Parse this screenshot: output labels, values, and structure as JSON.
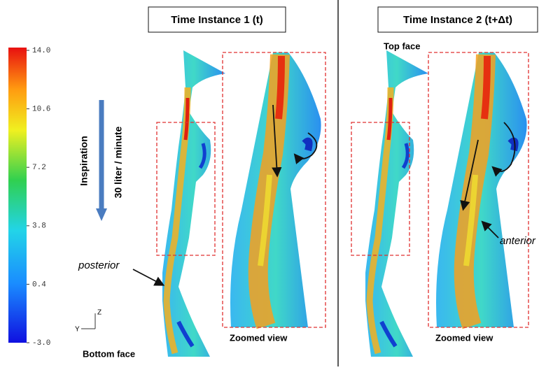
{
  "panels": [
    {
      "title": "Time Instance 1 (t)",
      "zoom_label": "Zoomed view"
    },
    {
      "title": "Time Instance 2 (t+Δt)",
      "zoom_label": "Zoomed view"
    }
  ],
  "colorbar": {
    "ticks": [
      {
        "value": 14,
        "label": "14.0"
      },
      {
        "value": 10.6,
        "label": "10.6"
      },
      {
        "value": 7.2,
        "label": "7.2"
      },
      {
        "value": 3.8,
        "label": "3.8"
      },
      {
        "value": 0.4,
        "label": "0.4"
      },
      {
        "value": -3,
        "label": "-3.0"
      }
    ]
  },
  "flow": {
    "label": "Inspiration",
    "rate": "30 liter / minute"
  },
  "annotations": {
    "posterior": "posterior",
    "anterior": "anterior",
    "top_face": "Top face",
    "bottom_face": "Bottom face",
    "axis_z": "Z",
    "axis_y": "Y"
  }
}
